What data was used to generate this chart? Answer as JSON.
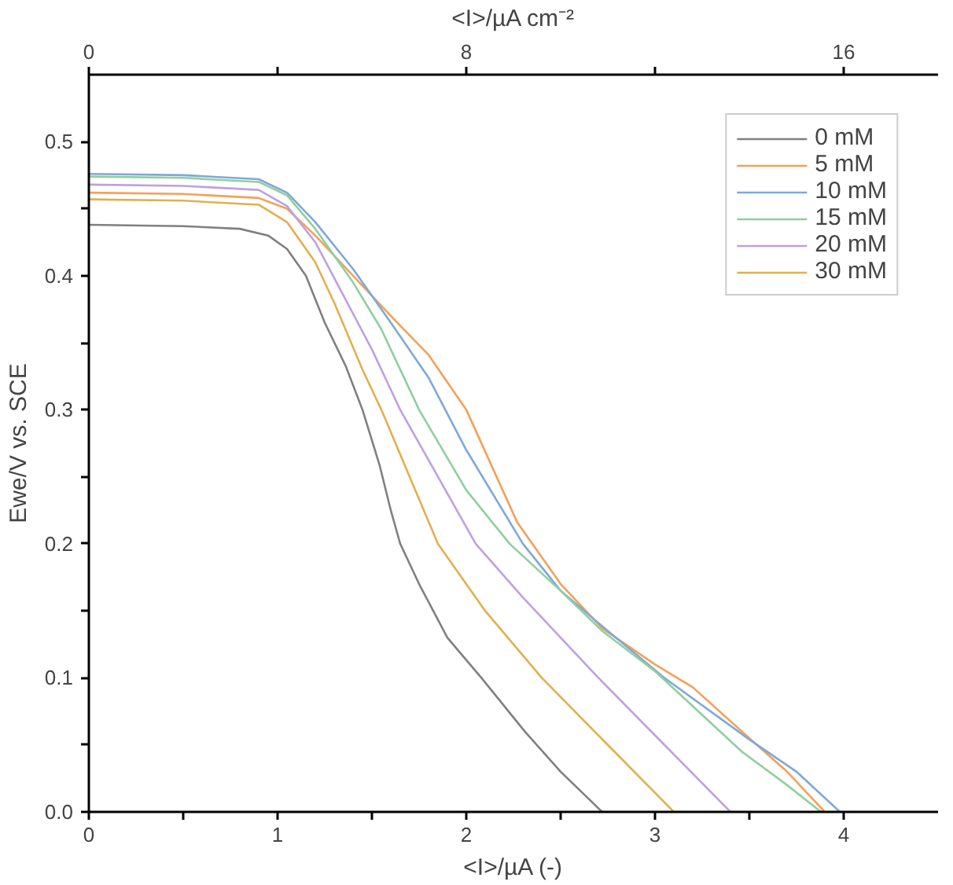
{
  "chart_data": {
    "type": "line",
    "xlabel": "<I>/µA (-)",
    "x2label": "<I>/µA cm⁻²",
    "ylabel": "Ewe/V vs. SCE",
    "xlim": [
      0,
      4.5
    ],
    "xticks": [
      0,
      {
        "value": 0.5,
        "label": null
      },
      1,
      {
        "value": 1.5,
        "label": null
      },
      2,
      {
        "value": 2.5,
        "label": null
      },
      3,
      {
        "value": 3.5,
        "label": null
      },
      4
    ],
    "x2lim": [
      0,
      18
    ],
    "x2ticks": [
      0,
      {
        "value": 4,
        "label": null
      },
      8,
      {
        "value": 12,
        "label": null
      },
      16
    ],
    "ylim": [
      0,
      0.55
    ],
    "yticks": [
      {
        "value": 0,
        "label": "0.0"
      },
      {
        "value": 0.05,
        "label": null
      },
      0.1,
      {
        "value": 0.15,
        "label": null
      },
      0.2,
      {
        "value": 0.25,
        "label": null
      },
      0.3,
      {
        "value": 0.35,
        "label": null
      },
      0.4,
      {
        "value": 0.45,
        "label": null
      },
      0.5
    ],
    "grid": false,
    "legend": "top right",
    "line_style": "solid",
    "marker": "none",
    "series": [
      {
        "name": "0 mM",
        "color": "#808080",
        "x": [
          0,
          0.5,
          0.8,
          0.95,
          1.05,
          1.15,
          1.25,
          1.36,
          1.45,
          1.54,
          1.6,
          1.65,
          1.75,
          1.9,
          2.08,
          2.31,
          2.5,
          2.72
        ],
        "values": [
          0.438,
          0.437,
          0.435,
          0.43,
          0.42,
          0.4,
          0.365,
          0.333,
          0.3,
          0.259,
          0.225,
          0.2,
          0.17,
          0.13,
          0.1,
          0.06,
          0.03,
          0
        ]
      },
      {
        "name": "5 mM",
        "color": "#f5a05a",
        "x": [
          0,
          0.5,
          0.9,
          1.05,
          1.2,
          1.4,
          1.6,
          1.8,
          2.0,
          2.27,
          2.5,
          2.72,
          3.0,
          3.2,
          3.5,
          3.7,
          3.9
        ],
        "values": [
          0.462,
          0.461,
          0.458,
          0.45,
          0.43,
          0.4,
          0.37,
          0.341,
          0.3,
          0.216,
          0.17,
          0.137,
          0.11,
          0.093,
          0.055,
          0.03,
          0
        ]
      },
      {
        "name": "10 mM",
        "color": "#7fa8d8",
        "x": [
          0,
          0.5,
          0.9,
          1.05,
          1.2,
          1.4,
          1.6,
          1.8,
          2.0,
          2.3,
          2.5,
          2.75,
          3.05,
          3.5,
          3.75,
          3.98
        ],
        "values": [
          0.476,
          0.475,
          0.472,
          0.462,
          0.44,
          0.405,
          0.365,
          0.324,
          0.27,
          0.2,
          0.165,
          0.135,
          0.1,
          0.054,
          0.03,
          0
        ]
      },
      {
        "name": "15 mM",
        "color": "#8fcf9f",
        "x": [
          0,
          0.5,
          0.9,
          1.05,
          1.2,
          1.4,
          1.55,
          1.75,
          2.0,
          2.23,
          2.5,
          2.72,
          3.0,
          3.46,
          3.7,
          3.88
        ],
        "values": [
          0.474,
          0.473,
          0.47,
          0.46,
          0.435,
          0.395,
          0.36,
          0.3,
          0.24,
          0.2,
          0.165,
          0.135,
          0.105,
          0.045,
          0.02,
          0
        ]
      },
      {
        "name": "20 mM",
        "color": "#c0a0e0",
        "x": [
          0,
          0.5,
          0.9,
          1.05,
          1.2,
          1.35,
          1.5,
          1.65,
          1.85,
          2.05,
          2.3,
          2.7,
          3.05,
          3.4
        ],
        "values": [
          0.468,
          0.467,
          0.464,
          0.452,
          0.425,
          0.385,
          0.345,
          0.3,
          0.25,
          0.2,
          0.16,
          0.1,
          0.05,
          0
        ]
      },
      {
        "name": "30 mM",
        "color": "#e0b050",
        "x": [
          0,
          0.5,
          0.9,
          1.05,
          1.2,
          1.3,
          1.45,
          1.55,
          1.7,
          1.85,
          2.1,
          2.4,
          2.75,
          3.1
        ],
        "values": [
          0.457,
          0.456,
          0.453,
          0.44,
          0.41,
          0.38,
          0.33,
          0.3,
          0.25,
          0.2,
          0.15,
          0.1,
          0.05,
          0
        ]
      }
    ]
  }
}
